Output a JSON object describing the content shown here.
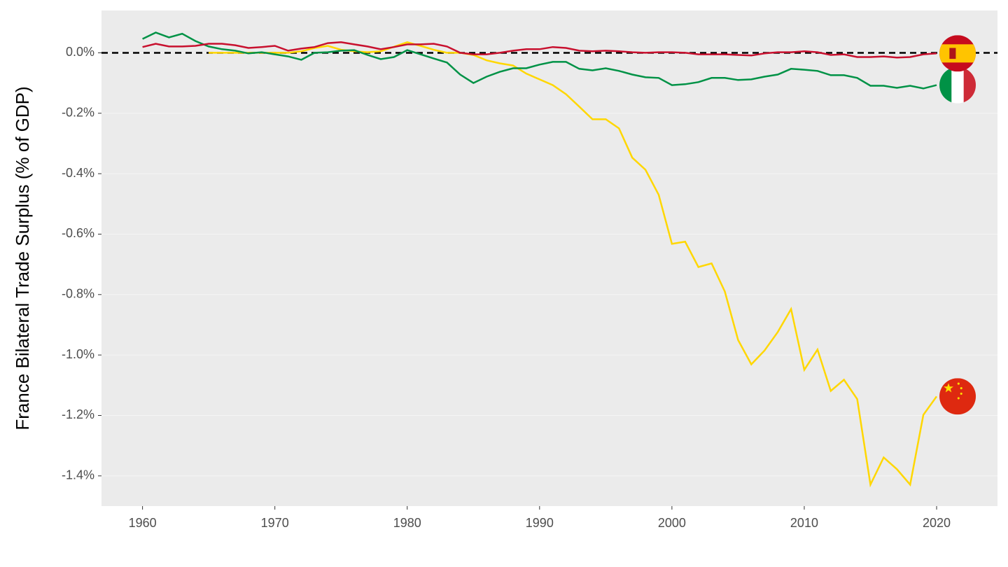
{
  "chart_data": {
    "type": "line",
    "y_label": "France Bilateral Trade Surplus (% of GDP)",
    "x": [
      1960,
      1961,
      1962,
      1963,
      1964,
      1965,
      1966,
      1967,
      1968,
      1969,
      1970,
      1971,
      1972,
      1973,
      1974,
      1975,
      1976,
      1977,
      1978,
      1979,
      1980,
      1981,
      1982,
      1983,
      1984,
      1985,
      1986,
      1987,
      1988,
      1989,
      1990,
      1991,
      1992,
      1993,
      1994,
      1995,
      1996,
      1997,
      1998,
      1999,
      2000,
      2001,
      2002,
      2003,
      2004,
      2005,
      2006,
      2007,
      2008,
      2009,
      2010,
      2011,
      2012,
      2013,
      2014,
      2015,
      2016,
      2017,
      2018,
      2019,
      2020
    ],
    "series": [
      {
        "color": "#ffd700",
        "flag": "china",
        "values": [
          null,
          null,
          null,
          null,
          null,
          0,
          0,
          0,
          0,
          0,
          0,
          0,
          0.005,
          0.016,
          0.023,
          0.01,
          0.005,
          0.002,
          0.005,
          0.02,
          0.035,
          0.023,
          0.01,
          0,
          0,
          -0.007,
          -0.025,
          -0.035,
          -0.042,
          -0.069,
          -0.088,
          -0.107,
          -0.137,
          -0.178,
          -0.22,
          -0.22,
          -0.25,
          -0.347,
          -0.387,
          -0.47,
          -0.632,
          -0.625,
          -0.709,
          -0.697,
          -0.79,
          -0.95,
          -1.031,
          -0.985,
          -0.924,
          -0.848,
          -1.049,
          -0.982,
          -1.119,
          -1.082,
          -1.146,
          -1.429,
          -1.339,
          -1.378,
          -1.429,
          -1.198,
          -1.137
        ]
      },
      {
        "color": "#009246",
        "flag": "italy",
        "values": [
          0.046,
          0.067,
          0.051,
          0.063,
          0.039,
          0.021,
          0.012,
          0.007,
          -0.002,
          0.002,
          -0.005,
          -0.012,
          -0.023,
          0,
          0.002,
          0.007,
          0.009,
          -0.007,
          -0.021,
          -0.014,
          0.009,
          -0.005,
          -0.019,
          -0.032,
          -0.072,
          -0.1,
          -0.079,
          -0.063,
          -0.051,
          -0.051,
          -0.039,
          -0.03,
          -0.03,
          -0.053,
          -0.058,
          -0.051,
          -0.06,
          -0.072,
          -0.081,
          -0.083,
          -0.107,
          -0.104,
          -0.097,
          -0.083,
          -0.083,
          -0.09,
          -0.088,
          -0.079,
          -0.072,
          -0.053,
          -0.056,
          -0.06,
          -0.074,
          -0.074,
          -0.083,
          -0.109,
          -0.109,
          -0.116,
          -0.109,
          -0.118,
          -0.107
        ]
      },
      {
        "color": "#c8102e",
        "flag": "spain",
        "values": [
          0.019,
          0.03,
          0.021,
          0.021,
          0.023,
          0.03,
          0.03,
          0.025,
          0.016,
          0.019,
          0.023,
          0.007,
          0.014,
          0.019,
          0.032,
          0.035,
          0.028,
          0.021,
          0.012,
          0.019,
          0.028,
          0.028,
          0.03,
          0.021,
          0,
          -0.005,
          -0.005,
          0,
          0.007,
          0.012,
          0.012,
          0.019,
          0.016,
          0.007,
          0.005,
          0.007,
          0.005,
          0.002,
          0,
          0.002,
          0.002,
          0,
          -0.005,
          -0.005,
          -0.005,
          -0.007,
          -0.009,
          -0.002,
          0.002,
          0.002,
          0.005,
          0.002,
          -0.007,
          -0.005,
          -0.014,
          -0.014,
          -0.012,
          -0.016,
          -0.014,
          -0.005,
          -0.002
        ]
      }
    ],
    "reference_line": 0,
    "xlim": [
      1956.9,
      2024.6
    ],
    "xticks": [
      1960,
      1970,
      1980,
      1990,
      2000,
      2010,
      2020
    ],
    "ylim": [
      -1.5,
      0.14
    ],
    "yticks": [
      {
        "value": -1.4,
        "label": "-1.4%"
      },
      {
        "value": -1.2,
        "label": "-1.2%"
      },
      {
        "value": -1.0,
        "label": "-1.0%"
      },
      {
        "value": -0.8,
        "label": "-0.8%"
      },
      {
        "value": -0.6,
        "label": "-0.6%"
      },
      {
        "value": -0.4,
        "label": "-0.4%"
      },
      {
        "value": -0.2,
        "label": "-0.2%"
      },
      {
        "value": 0,
        "label": "0.0%"
      }
    ],
    "background": "#ebebeb"
  }
}
